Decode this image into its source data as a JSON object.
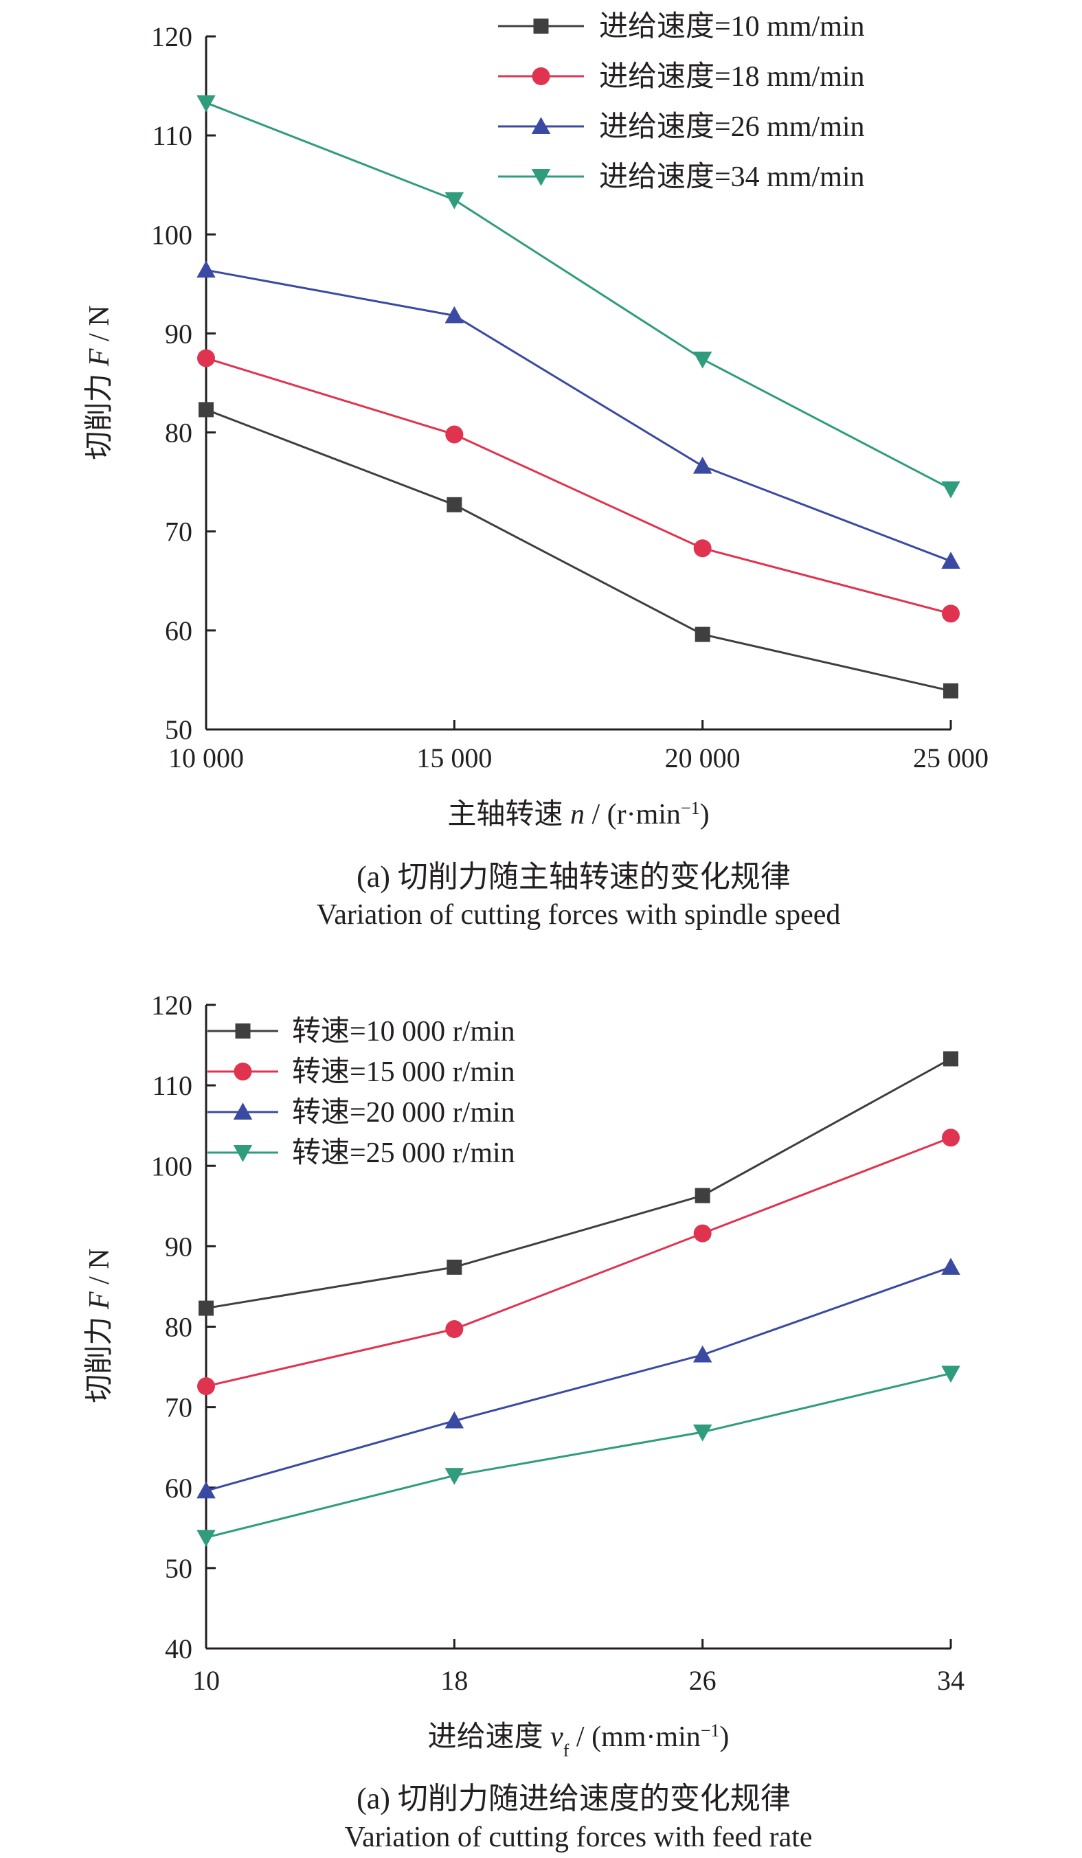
{
  "colors": {
    "series": [
      "#3f3f3f",
      "#e0334f",
      "#3a4aa3",
      "#2f9c7e"
    ],
    "axis": "#231f20"
  },
  "chart_data": [
    {
      "type": "line",
      "x": [
        10000,
        15000,
        20000,
        25000
      ],
      "x_tick_labels": [
        "10 000",
        "15 000",
        "20 000",
        "25 000"
      ],
      "y_ticks": [
        50,
        60,
        70,
        80,
        90,
        100,
        110,
        120
      ],
      "ylim": [
        50,
        120
      ],
      "xlabel_main": "主轴转速",
      "xlabel_var": "n",
      "xlabel_unit": " / (r·min",
      "xlabel_sup": "−1",
      "xlabel_close": ")",
      "ylabel_main": "切削力",
      "ylabel_var": "F",
      "ylabel_unit": " / N",
      "legend_position": "top-right",
      "series": [
        {
          "name": "进给速度=10 mm/min",
          "marker": "square",
          "values": [
            82.3,
            72.7,
            59.6,
            53.9
          ]
        },
        {
          "name": "进给速度=18 mm/min",
          "marker": "circle",
          "values": [
            87.5,
            79.8,
            68.3,
            61.7
          ]
        },
        {
          "name": "进给速度=26 mm/min",
          "marker": "triangle-up",
          "values": [
            96.4,
            91.8,
            76.6,
            67.0
          ]
        },
        {
          "name": "进给速度=34 mm/min",
          "marker": "triangle-down",
          "values": [
            113.3,
            103.5,
            87.4,
            74.3
          ]
        }
      ],
      "caption_cn": "(a) 切削力随主轴转速的变化规律",
      "caption_en": "Variation of cutting forces with spindle speed"
    },
    {
      "type": "line",
      "x": [
        10,
        18,
        26,
        34
      ],
      "x_tick_labels": [
        "10",
        "18",
        "26",
        "34"
      ],
      "y_ticks": [
        40,
        50,
        60,
        70,
        80,
        90,
        100,
        110,
        120
      ],
      "ylim": [
        40,
        120
      ],
      "xlabel_main": "进给速度",
      "xlabel_var": "v",
      "xlabel_sub": "f",
      "xlabel_unit": " / (mm·min",
      "xlabel_sup": "−1",
      "xlabel_close": ")",
      "ylabel_main": "切削力",
      "ylabel_var": "F",
      "ylabel_unit": " / N",
      "legend_position": "top-left",
      "series": [
        {
          "name": "转速=10 000 r/min",
          "marker": "square",
          "values": [
            82.3,
            87.4,
            96.3,
            113.3
          ]
        },
        {
          "name": "转速=15 000 r/min",
          "marker": "circle",
          "values": [
            72.6,
            79.7,
            91.6,
            103.5
          ]
        },
        {
          "name": "转速=20 000 r/min",
          "marker": "triangle-up",
          "values": [
            59.6,
            68.3,
            76.5,
            87.4
          ]
        },
        {
          "name": "转速=25 000 r/min",
          "marker": "triangle-down",
          "values": [
            53.8,
            61.5,
            66.9,
            74.2
          ]
        }
      ],
      "caption_cn": "(a) 切削力随进给速度的变化规律",
      "caption_en": "Variation of cutting forces with feed rate"
    }
  ]
}
